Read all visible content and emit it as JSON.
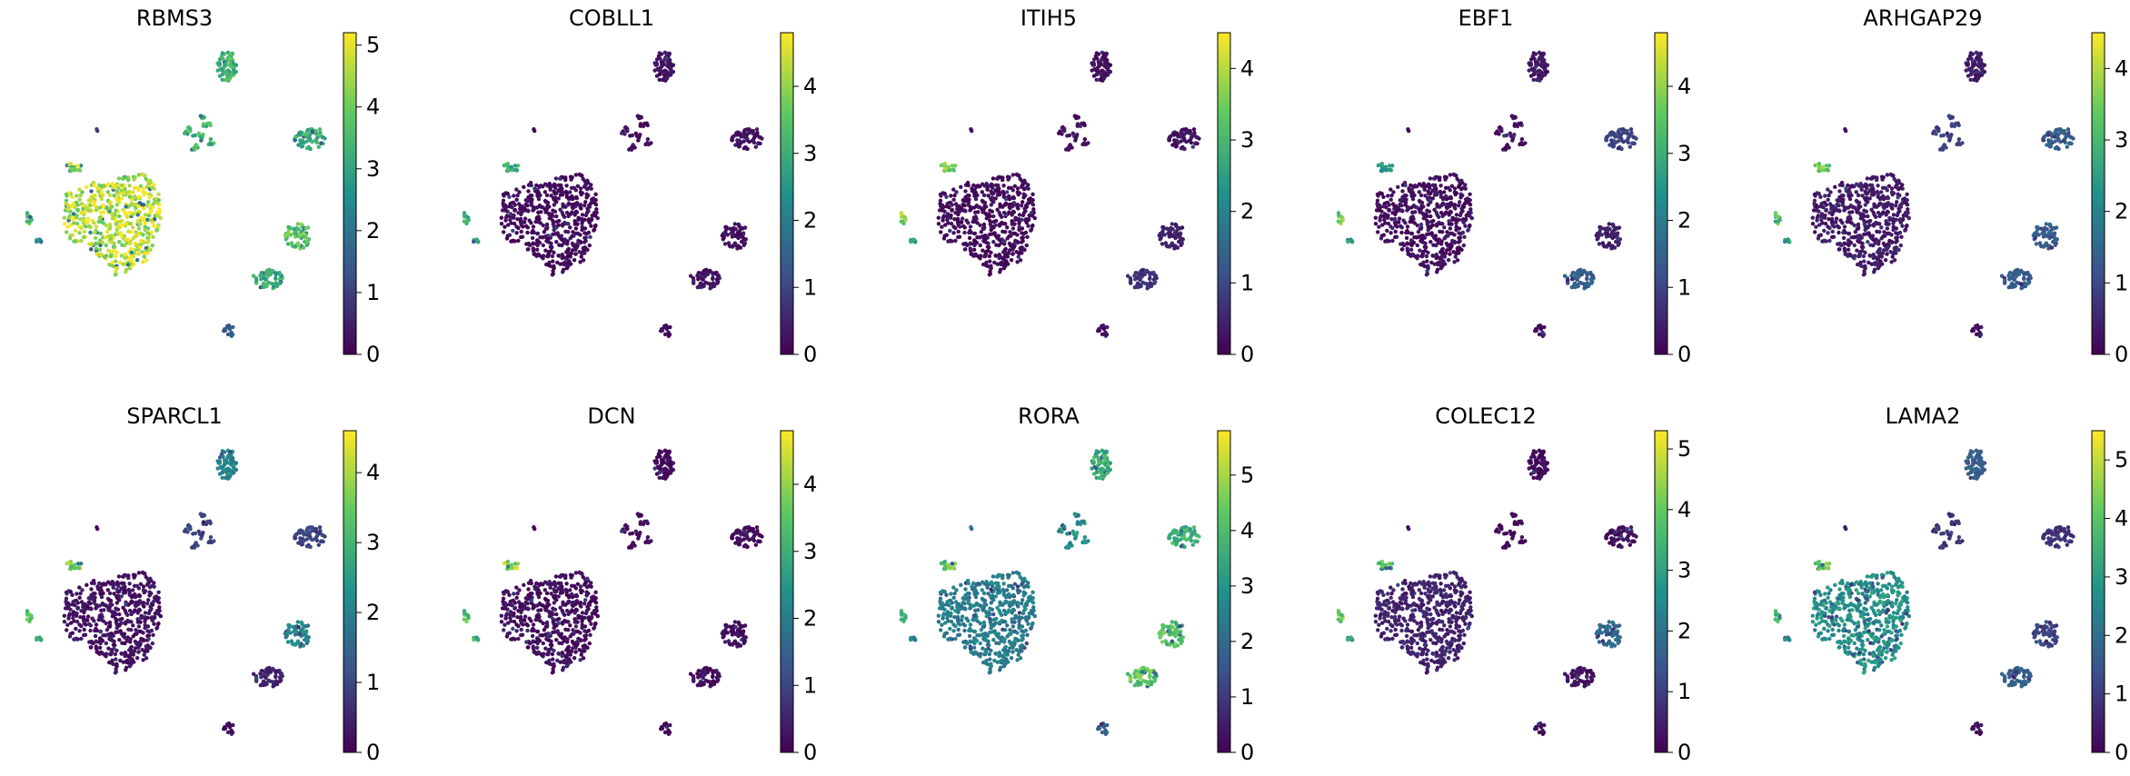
{
  "figure": {
    "type": "scatter",
    "colormap": "viridis",
    "colormap_stops": [
      "#440154",
      "#3b528b",
      "#21918c",
      "#5ec962",
      "#fde725"
    ]
  },
  "clusters": [
    {
      "id": "c1",
      "name": "large"
    },
    {
      "id": "c2",
      "name": "top"
    },
    {
      "id": "c3",
      "name": "star"
    },
    {
      "id": "c4",
      "name": "right-upper"
    },
    {
      "id": "c5",
      "name": "right-middle"
    },
    {
      "id": "c6",
      "name": "right-lower"
    },
    {
      "id": "c7",
      "name": "left-small-1"
    },
    {
      "id": "c8",
      "name": "left-small-2"
    },
    {
      "id": "c9",
      "name": "left-small-3"
    },
    {
      "id": "c10",
      "name": "bottom-small"
    },
    {
      "id": "c11",
      "name": "tiny-top-left"
    }
  ],
  "chart_data": [
    {
      "type": "scatter",
      "title": "RBMS3",
      "colorbar_max": 5.2,
      "colorbar_ticks": [
        0,
        1,
        2,
        3,
        4,
        5
      ],
      "cluster_levels": {
        "c1": 0.9,
        "c2": 0.65,
        "c3": 0.65,
        "c4": 0.62,
        "c5": 0.72,
        "c6": 0.62,
        "c7": 0.85,
        "c8": 0.7,
        "c9": 0.55,
        "c10": 0.3,
        "c11": 0.2
      }
    },
    {
      "type": "scatter",
      "title": "COBLL1",
      "colorbar_max": 4.8,
      "colorbar_ticks": [
        0,
        1,
        2,
        3,
        4
      ],
      "cluster_levels": {
        "c1": 0.03,
        "c2": 0.05,
        "c3": 0.03,
        "c4": 0.05,
        "c5": 0.05,
        "c6": 0.05,
        "c7": 0.6,
        "c8": 0.65,
        "c9": 0.65,
        "c10": 0.02,
        "c11": 0.02
      }
    },
    {
      "type": "scatter",
      "title": "ITIH5",
      "colorbar_max": 4.5,
      "colorbar_ticks": [
        0,
        1,
        2,
        3,
        4
      ],
      "cluster_levels": {
        "c1": 0.03,
        "c2": 0.04,
        "c3": 0.04,
        "c4": 0.05,
        "c5": 0.1,
        "c6": 0.15,
        "c7": 0.8,
        "c8": 0.8,
        "c9": 0.55,
        "c10": 0.03,
        "c11": 0.03
      }
    },
    {
      "type": "scatter",
      "title": "EBF1",
      "colorbar_max": 4.8,
      "colorbar_ticks": [
        0,
        1,
        2,
        3,
        4
      ],
      "cluster_levels": {
        "c1": 0.04,
        "c2": 0.08,
        "c3": 0.04,
        "c4": 0.2,
        "c5": 0.1,
        "c6": 0.3,
        "c7": 0.55,
        "c8": 0.8,
        "c9": 0.6,
        "c10": 0.03,
        "c11": 0.03
      }
    },
    {
      "type": "scatter",
      "title": "ARHGAP29",
      "colorbar_max": 4.5,
      "colorbar_ticks": [
        0,
        1,
        2,
        3,
        4
      ],
      "cluster_levels": {
        "c1": 0.08,
        "c2": 0.08,
        "c3": 0.2,
        "c4": 0.3,
        "c5": 0.3,
        "c6": 0.3,
        "c7": 0.8,
        "c8": 0.7,
        "c9": 0.55,
        "c10": 0.03,
        "c11": 0.05
      }
    },
    {
      "type": "scatter",
      "title": "SPARCL1",
      "colorbar_max": 4.6,
      "colorbar_ticks": [
        0,
        1,
        2,
        3,
        4
      ],
      "cluster_levels": {
        "c1": 0.05,
        "c2": 0.45,
        "c3": 0.2,
        "c4": 0.2,
        "c5": 0.45,
        "c6": 0.1,
        "c7": 0.8,
        "c8": 0.7,
        "c9": 0.6,
        "c10": 0.03,
        "c11": 0.04
      }
    },
    {
      "type": "scatter",
      "title": "DCN",
      "colorbar_max": 4.8,
      "colorbar_ticks": [
        0,
        1,
        2,
        3,
        4
      ],
      "cluster_levels": {
        "c1": 0.04,
        "c2": 0.03,
        "c3": 0.03,
        "c4": 0.03,
        "c5": 0.04,
        "c6": 0.04,
        "c7": 0.85,
        "c8": 0.7,
        "c9": 0.65,
        "c10": 0.02,
        "c11": 0.02
      }
    },
    {
      "type": "scatter",
      "title": "RORA",
      "colorbar_max": 5.8,
      "colorbar_ticks": [
        0,
        1,
        2,
        3,
        4,
        5
      ],
      "cluster_levels": {
        "c1": 0.42,
        "c2": 0.62,
        "c3": 0.5,
        "c4": 0.62,
        "c5": 0.72,
        "c6": 0.72,
        "c7": 0.75,
        "c8": 0.6,
        "c9": 0.45,
        "c10": 0.3,
        "c11": 0.4
      }
    },
    {
      "type": "scatter",
      "title": "COLEC12",
      "colorbar_max": 5.3,
      "colorbar_ticks": [
        0,
        1,
        2,
        3,
        4,
        5
      ],
      "cluster_levels": {
        "c1": 0.1,
        "c2": 0.04,
        "c3": 0.03,
        "c4": 0.04,
        "c5": 0.35,
        "c6": 0.05,
        "c7": 0.7,
        "c8": 0.75,
        "c9": 0.55,
        "c10": 0.03,
        "c11": 0.03
      }
    },
    {
      "type": "scatter",
      "title": "LAMA2",
      "colorbar_max": 5.5,
      "colorbar_ticks": [
        0,
        1,
        2,
        3,
        4,
        5
      ],
      "cluster_levels": {
        "c1": 0.5,
        "c2": 0.3,
        "c3": 0.15,
        "c4": 0.15,
        "c5": 0.2,
        "c6": 0.3,
        "c7": 0.75,
        "c8": 0.65,
        "c9": 0.5,
        "c10": 0.05,
        "c11": 0.1
      }
    }
  ]
}
